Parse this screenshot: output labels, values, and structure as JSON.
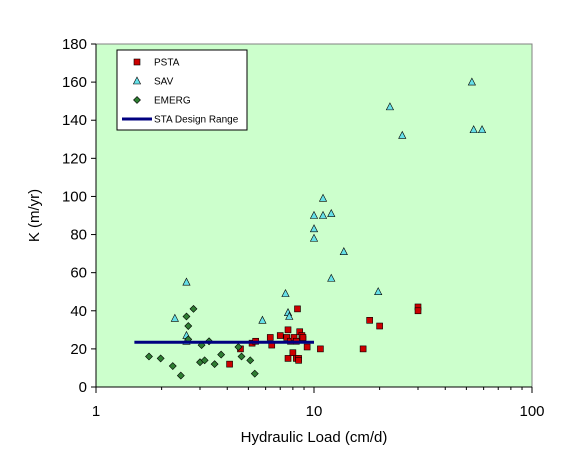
{
  "colors": {
    "plot_bg": "#ccffcc",
    "psta": "#cc0000",
    "sav": "#66e0e8",
    "emerg": "#2e7d32",
    "design_range": "#000080"
  },
  "chart_data": {
    "type": "scatter",
    "xlabel": "Hydraulic Load (cm/d)",
    "ylabel": "K (m/yr)",
    "xscale": "log",
    "xlim": [
      1,
      100
    ],
    "ylim": [
      0,
      180
    ],
    "x_ticks": [
      "1",
      "10",
      "100"
    ],
    "y_ticks": [
      "0",
      "20",
      "40",
      "60",
      "80",
      "100",
      "120",
      "140",
      "160",
      "180"
    ],
    "grid": false,
    "legend_position": "top-left",
    "series": [
      {
        "name": "PSTA",
        "marker": "square",
        "points": [
          [
            4.1,
            12
          ],
          [
            4.6,
            20
          ],
          [
            5.2,
            23
          ],
          [
            5.4,
            24
          ],
          [
            6.3,
            26
          ],
          [
            6.4,
            22
          ],
          [
            7.0,
            27
          ],
          [
            7.5,
            26
          ],
          [
            7.6,
            30
          ],
          [
            7.8,
            24
          ],
          [
            7.6,
            15
          ],
          [
            8.0,
            18
          ],
          [
            8.1,
            26
          ],
          [
            8.3,
            15
          ],
          [
            8.3,
            24
          ],
          [
            8.4,
            41
          ],
          [
            8.5,
            15
          ],
          [
            8.6,
            29
          ],
          [
            8.8,
            27
          ],
          [
            8.9,
            25
          ],
          [
            8.9,
            26
          ],
          [
            9.3,
            21
          ],
          [
            8.5,
            14
          ],
          [
            10.7,
            20
          ],
          [
            16.8,
            20
          ],
          [
            18.0,
            35
          ],
          [
            20.0,
            32
          ],
          [
            30.0,
            42
          ],
          [
            30.0,
            40
          ]
        ]
      },
      {
        "name": "SAV",
        "marker": "triangle",
        "points": [
          [
            2.3,
            36
          ],
          [
            2.6,
            24
          ],
          [
            2.6,
            27
          ],
          [
            2.6,
            55
          ],
          [
            5.8,
            35
          ],
          [
            7.4,
            49
          ],
          [
            7.6,
            39
          ],
          [
            7.7,
            37
          ],
          [
            10.0,
            90
          ],
          [
            10.0,
            83
          ],
          [
            10.0,
            78
          ],
          [
            11.0,
            99
          ],
          [
            11.0,
            90
          ],
          [
            12.0,
            91
          ],
          [
            12.0,
            57
          ],
          [
            13.7,
            71
          ],
          [
            19.7,
            50
          ],
          [
            22.3,
            147
          ],
          [
            25.4,
            132
          ],
          [
            53.0,
            160
          ],
          [
            54.0,
            135
          ],
          [
            59.0,
            135
          ]
        ]
      },
      {
        "name": "EMERG",
        "marker": "diamond",
        "points": [
          [
            1.75,
            16
          ],
          [
            1.98,
            15
          ],
          [
            2.25,
            11
          ],
          [
            2.45,
            6
          ],
          [
            2.6,
            37
          ],
          [
            2.65,
            32
          ],
          [
            2.65,
            25
          ],
          [
            2.8,
            41
          ],
          [
            3.0,
            13
          ],
          [
            3.05,
            22
          ],
          [
            3.15,
            14
          ],
          [
            3.3,
            24
          ],
          [
            3.5,
            12
          ],
          [
            3.75,
            17
          ],
          [
            4.5,
            21
          ],
          [
            4.65,
            16
          ],
          [
            5.1,
            14
          ],
          [
            5.35,
            7
          ]
        ]
      },
      {
        "name": "STA Design Range",
        "type": "line",
        "points": [
          [
            1.5,
            23.5
          ],
          [
            10.0,
            23.5
          ]
        ]
      }
    ]
  }
}
